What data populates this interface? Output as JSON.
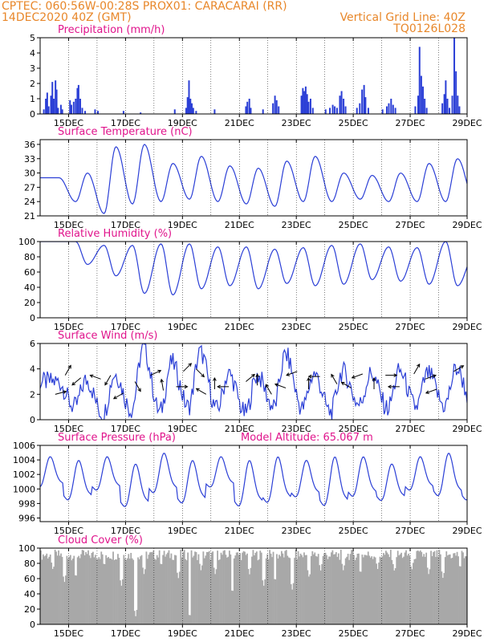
{
  "header": {
    "line1_left": "CPTEC:   060:56W-00:28S   PROX01: CARACARAI (RR)",
    "line2_left": "14DEC2020 40Z (GMT)",
    "line2_right": "Vertical Grid Line: 40Z",
    "line3_right": "TQ0126L028",
    "color": "#e8872a"
  },
  "style": {
    "title_color": "#e0148c",
    "line_color": "#2b3fd6",
    "bar_color": "#2b3fd6",
    "cloud_color": "#a8a8a8",
    "arrow_color": "#000000"
  },
  "x_axis": {
    "start_day": 14.17,
    "end_day": 29.17,
    "ticks": [
      {
        "day": 15.17,
        "label": "15DEC"
      },
      {
        "day": 17.17,
        "label": "17DEC"
      },
      {
        "day": 19.17,
        "label": "19DEC"
      },
      {
        "day": 21.17,
        "label": "21DEC"
      },
      {
        "day": 23.17,
        "label": "23DEC"
      },
      {
        "day": 25.17,
        "label": "25DEC"
      },
      {
        "day": 27.17,
        "label": "27DEC"
      },
      {
        "day": 29.17,
        "label": "29DEC"
      }
    ],
    "vertical_grid_days": [
      15.17,
      16.17,
      17.17,
      18.17,
      19.17,
      20.17,
      21.17,
      22.17,
      23.17,
      24.17,
      25.17,
      26.17,
      27.17,
      28.17
    ]
  },
  "chart_data": [
    {
      "id": "precip",
      "type": "bar",
      "title": "Precipitation (mm/h)",
      "extra_title": "",
      "ylim": [
        0,
        5
      ],
      "yticks": [
        0,
        1,
        2,
        3,
        4,
        5
      ],
      "bars": [
        [
          14.3,
          0.3
        ],
        [
          14.37,
          1.0
        ],
        [
          14.42,
          1.4
        ],
        [
          14.47,
          0.5
        ],
        [
          14.55,
          1.2
        ],
        [
          14.6,
          2.1
        ],
        [
          14.65,
          1.0
        ],
        [
          14.71,
          2.2
        ],
        [
          14.75,
          1.6
        ],
        [
          14.8,
          0.4
        ],
        [
          14.9,
          0.6
        ],
        [
          14.95,
          0.3
        ],
        [
          15.22,
          0.9
        ],
        [
          15.27,
          0.6
        ],
        [
          15.35,
          0.8
        ],
        [
          15.42,
          1.0
        ],
        [
          15.48,
          1.7
        ],
        [
          15.52,
          1.9
        ],
        [
          15.58,
          1.0
        ],
        [
          15.65,
          0.4
        ],
        [
          15.75,
          0.2
        ],
        [
          16.1,
          0.3
        ],
        [
          16.2,
          0.2
        ],
        [
          17.1,
          0.2
        ],
        [
          17.7,
          0.1
        ],
        [
          18.9,
          0.3
        ],
        [
          19.3,
          0.4
        ],
        [
          19.35,
          1.1
        ],
        [
          19.4,
          2.2
        ],
        [
          19.45,
          1.0
        ],
        [
          19.5,
          0.7
        ],
        [
          19.55,
          0.4
        ],
        [
          19.65,
          0.2
        ],
        [
          20.3,
          0.3
        ],
        [
          21.4,
          0.5
        ],
        [
          21.45,
          0.8
        ],
        [
          21.52,
          1.0
        ],
        [
          21.57,
          0.4
        ],
        [
          22.0,
          0.3
        ],
        [
          22.35,
          0.7
        ],
        [
          22.42,
          1.2
        ],
        [
          22.48,
          0.9
        ],
        [
          22.55,
          0.5
        ],
        [
          23.35,
          1.2
        ],
        [
          23.4,
          1.7
        ],
        [
          23.45,
          1.5
        ],
        [
          23.5,
          1.8
        ],
        [
          23.55,
          1.3
        ],
        [
          23.6,
          0.8
        ],
        [
          23.67,
          1.0
        ],
        [
          23.75,
          0.4
        ],
        [
          24.2,
          0.3
        ],
        [
          24.35,
          0.4
        ],
        [
          24.45,
          0.6
        ],
        [
          24.52,
          0.5
        ],
        [
          24.6,
          0.4
        ],
        [
          24.7,
          1.2
        ],
        [
          24.76,
          1.5
        ],
        [
          24.83,
          1.0
        ],
        [
          24.9,
          0.5
        ],
        [
          25.3,
          0.4
        ],
        [
          25.4,
          0.7
        ],
        [
          25.48,
          1.6
        ],
        [
          25.55,
          1.9
        ],
        [
          25.6,
          1.1
        ],
        [
          25.7,
          0.4
        ],
        [
          26.2,
          0.3
        ],
        [
          26.35,
          0.5
        ],
        [
          26.42,
          0.7
        ],
        [
          26.5,
          1.0
        ],
        [
          26.57,
          0.6
        ],
        [
          26.65,
          0.4
        ],
        [
          27.35,
          0.5
        ],
        [
          27.45,
          1.2
        ],
        [
          27.5,
          4.4
        ],
        [
          27.56,
          2.5
        ],
        [
          27.62,
          1.8
        ],
        [
          27.68,
          1.0
        ],
        [
          27.75,
          0.4
        ],
        [
          28.3,
          0.7
        ],
        [
          28.37,
          1.3
        ],
        [
          28.42,
          2.2
        ],
        [
          28.48,
          1.0
        ],
        [
          28.55,
          0.4
        ],
        [
          28.65,
          1.2
        ],
        [
          28.72,
          5.0
        ],
        [
          28.78,
          2.8
        ],
        [
          28.84,
          1.2
        ],
        [
          28.9,
          0.5
        ]
      ]
    },
    {
      "id": "temp",
      "type": "line",
      "title": "Surface Temperature (nC)",
      "extra_title": "",
      "ylim": [
        21,
        37
      ],
      "yticks": [
        21,
        24,
        27,
        30,
        33,
        36
      ],
      "peaks": [
        29,
        30,
        35.5,
        36,
        32,
        33.5,
        31.5,
        31,
        32.5,
        33.5,
        30,
        29.5,
        30,
        32,
        33,
        30.5
      ],
      "troughs": [
        24,
        21.5,
        23.5,
        24,
        24.5,
        24,
        23.5,
        23,
        24,
        24,
        24.5,
        24,
        24,
        24,
        24.5
      ]
    },
    {
      "id": "rh",
      "type": "line",
      "title": "Relative Humidity (%)",
      "extra_title": "",
      "ylim": [
        0,
        100
      ],
      "yticks": [
        0,
        20,
        40,
        60,
        80,
        100
      ],
      "peaks": [
        100,
        100,
        95,
        95,
        97,
        97,
        93,
        93,
        90,
        92,
        95,
        97,
        93,
        92,
        100,
        82
      ],
      "troughs": [
        70,
        55,
        32,
        30,
        38,
        42,
        38,
        45,
        42,
        44,
        50,
        48,
        44,
        42,
        38,
        55
      ]
    },
    {
      "id": "wind",
      "type": "line",
      "title": "Surface Wind (m/s)",
      "extra_title": "",
      "ylim": [
        0,
        6
      ],
      "yticks": [
        0,
        2,
        4,
        6
      ],
      "peaks": [
        3.0,
        3.1,
        3.6,
        5.6,
        4.5,
        5.3,
        3.6,
        3.5,
        5.1,
        3.6,
        3.8,
        3.6,
        3.8,
        3.6,
        4.0,
        3.0
      ],
      "troughs": [
        1.0,
        0.4,
        0.8,
        0.6,
        1.0,
        0.8,
        0.5,
        1.0,
        0.9,
        0.6,
        1.2,
        0.9,
        1.0,
        1.1,
        1.1,
        1.0
      ],
      "arrows": [
        [
          14.7,
          2.0,
          15
        ],
        [
          15.05,
          3.5,
          60
        ],
        [
          15.6,
          3.3,
          -140
        ],
        [
          16.3,
          3.2,
          160
        ],
        [
          16.65,
          3.5,
          -120
        ],
        [
          17.1,
          2.1,
          -150
        ],
        [
          17.5,
          3.0,
          -60
        ],
        [
          18.05,
          3.5,
          25
        ],
        [
          18.5,
          2.3,
          100
        ],
        [
          18.95,
          2.6,
          0
        ],
        [
          19.2,
          3.8,
          45
        ],
        [
          19.65,
          4.0,
          -45
        ],
        [
          20.0,
          2.0,
          150
        ],
        [
          20.3,
          2.4,
          90
        ],
        [
          20.8,
          2.6,
          180
        ],
        [
          21.4,
          3.0,
          40
        ],
        [
          21.8,
          2.7,
          90
        ],
        [
          22.3,
          2.0,
          120
        ],
        [
          22.8,
          2.5,
          160
        ],
        [
          23.2,
          3.8,
          -160
        ],
        [
          23.6,
          2.4,
          90
        ],
        [
          24.0,
          3.4,
          180
        ],
        [
          24.6,
          2.8,
          120
        ],
        [
          25.1,
          2.5,
          150
        ],
        [
          25.5,
          3.6,
          -160
        ],
        [
          25.9,
          2.4,
          90
        ],
        [
          26.3,
          3.5,
          0
        ],
        [
          26.8,
          2.6,
          180
        ],
        [
          27.3,
          3.6,
          60
        ],
        [
          27.7,
          3.2,
          20
        ],
        [
          28.1,
          2.4,
          200
        ],
        [
          28.7,
          3.8,
          30
        ]
      ]
    },
    {
      "id": "pres",
      "type": "line",
      "title": "Surface Pressure (hPa)",
      "extra_title": "Model Altitude: 65.067 m",
      "ylim": [
        995.5,
        1006
      ],
      "yticks": [
        996,
        998,
        1000,
        1002,
        1004,
        1006
      ],
      "cycles": [
        [
          1004.5,
          999.5
        ],
        [
          1004.0,
          997.5
        ],
        [
          1004.5,
          999.0
        ],
        [
          1003.5,
          996.5
        ],
        [
          1005.0,
          998.5
        ],
        [
          1004.0,
          997.0
        ],
        [
          1004.5,
          999.5
        ],
        [
          1004.0,
          996.5
        ],
        [
          1004.5,
          997.0
        ],
        [
          1004.0,
          998.0
        ],
        [
          1004.5,
          996.5
        ],
        [
          1004.5,
          998.0
        ],
        [
          1003.5,
          997.5
        ],
        [
          1004.5,
          999.0
        ],
        [
          1005.0,
          998.0
        ],
        [
          1004.0,
          997.5
        ]
      ]
    },
    {
      "id": "cloud",
      "type": "bar",
      "title": "Cloud Cover (%)",
      "extra_title": "",
      "ylim": [
        0,
        100
      ],
      "yticks": [
        0,
        20,
        40,
        60,
        80,
        100
      ],
      "low_spikes": [
        [
          14.6,
          70
        ],
        [
          15.0,
          55
        ],
        [
          15.4,
          60
        ],
        [
          16.4,
          75
        ],
        [
          17.0,
          50
        ],
        [
          17.5,
          10
        ],
        [
          17.8,
          65
        ],
        [
          18.4,
          75
        ],
        [
          19.0,
          60
        ],
        [
          19.4,
          8
        ],
        [
          19.8,
          70
        ],
        [
          20.3,
          65
        ],
        [
          20.9,
          40
        ],
        [
          21.5,
          65
        ],
        [
          22.0,
          50
        ],
        [
          22.4,
          55
        ],
        [
          23.0,
          45
        ],
        [
          23.6,
          60
        ],
        [
          24.0,
          70
        ],
        [
          24.8,
          70
        ],
        [
          25.4,
          65
        ],
        [
          26.0,
          72
        ],
        [
          26.6,
          68
        ],
        [
          27.2,
          70
        ],
        [
          27.8,
          65
        ],
        [
          28.3,
          60
        ],
        [
          28.9,
          72
        ]
      ]
    }
  ]
}
